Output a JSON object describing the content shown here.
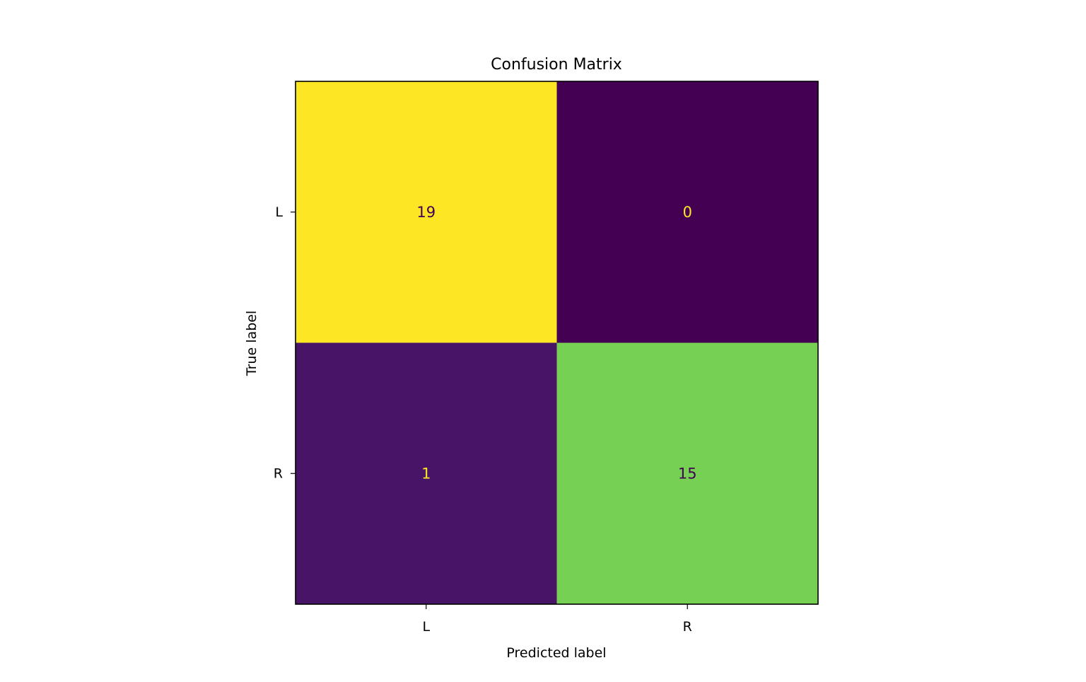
{
  "chart_data": {
    "type": "heatmap",
    "title": "Confusion Matrix",
    "xlabel": "Predicted label",
    "ylabel": "True label",
    "x_categories": [
      "L",
      "R"
    ],
    "y_categories": [
      "L",
      "R"
    ],
    "values": [
      [
        19,
        0
      ],
      [
        1,
        15
      ]
    ],
    "colormap": "viridis",
    "cell_colors": [
      [
        "#fde725",
        "#440154"
      ],
      [
        "#481467",
        "#75d054"
      ]
    ],
    "text_colors": [
      [
        "#440154",
        "#fde725"
      ],
      [
        "#fde725",
        "#440154"
      ]
    ],
    "grid": false,
    "colorbar": false
  }
}
